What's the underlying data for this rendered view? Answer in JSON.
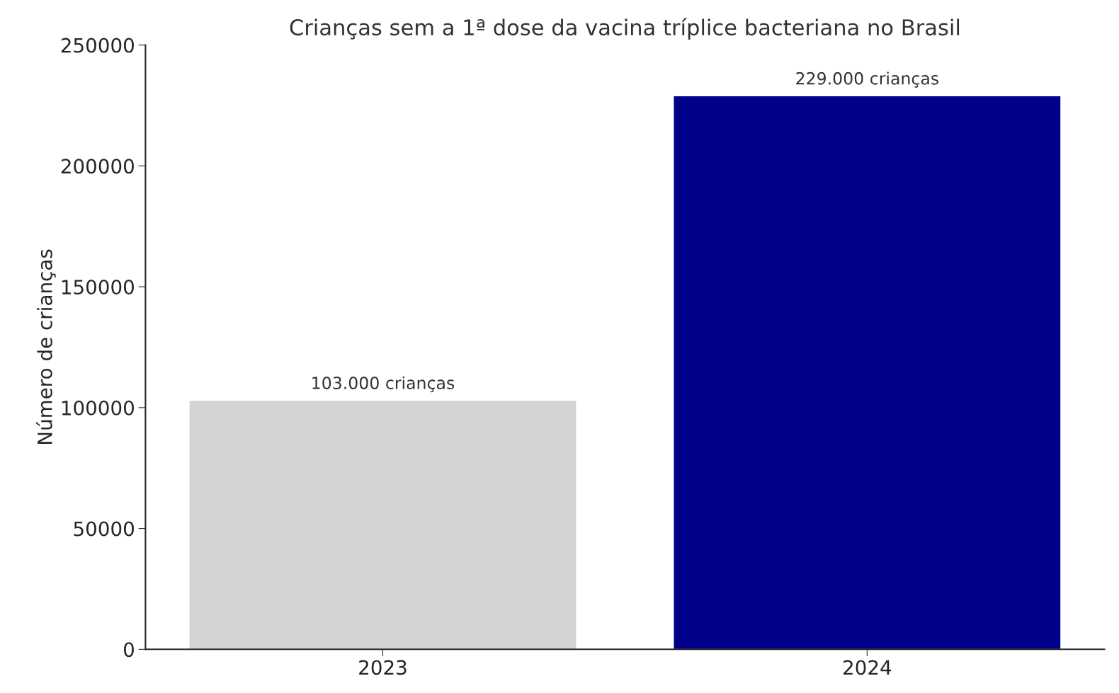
{
  "chart_data": {
    "type": "bar",
    "title": "Crianças sem a 1ª dose da vacina tríplice bacteriana no Brasil",
    "ylabel": "Número de crianças",
    "categories": [
      "2023",
      "2024"
    ],
    "values": [
      103000,
      229000
    ],
    "colors": [
      "#d3d3d3",
      "#00008b"
    ],
    "value_labels": [
      "103.000 crianças",
      "229.000 crianças"
    ],
    "ylim": [
      0,
      250000
    ],
    "yticks": [
      0,
      50000,
      100000,
      150000,
      200000,
      250000
    ],
    "grid": false
  }
}
